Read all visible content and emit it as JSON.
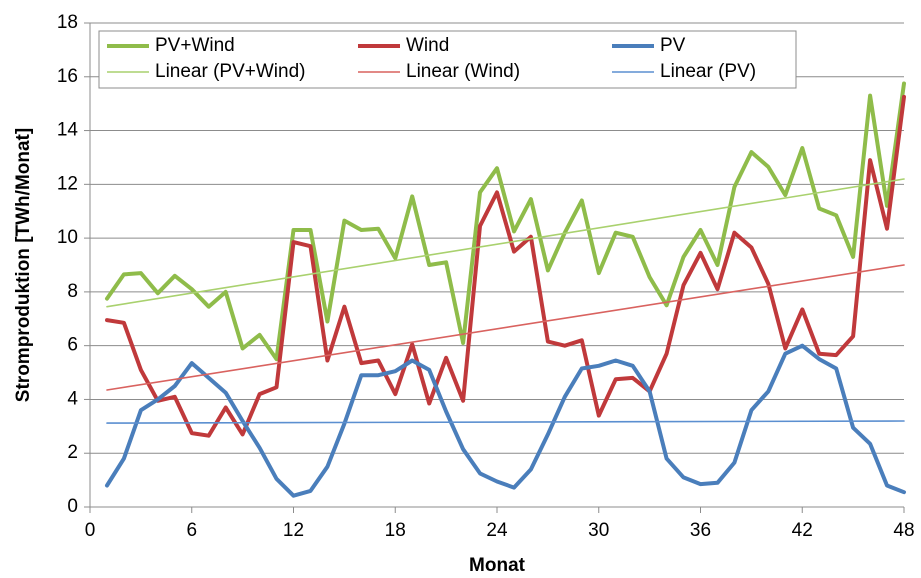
{
  "chart_data": {
    "type": "line",
    "x_label": "Monat",
    "y_label": "Stromproduktion  [TWh/Monat]",
    "x": [
      1,
      2,
      3,
      4,
      5,
      6,
      7,
      8,
      9,
      10,
      11,
      12,
      13,
      14,
      15,
      16,
      17,
      18,
      19,
      20,
      21,
      22,
      23,
      24,
      25,
      26,
      27,
      28,
      29,
      30,
      31,
      32,
      33,
      34,
      35,
      36,
      37,
      38,
      39,
      40,
      41,
      42,
      43,
      44,
      45,
      46,
      47,
      48
    ],
    "xlim": [
      0,
      48
    ],
    "xticks": [
      0,
      6,
      12,
      18,
      24,
      30,
      36,
      42,
      48
    ],
    "ylim": [
      0,
      18
    ],
    "yticks": [
      0,
      2,
      4,
      6,
      8,
      10,
      12,
      14,
      16,
      18
    ],
    "grid": true,
    "legend": "top-left",
    "series": [
      {
        "name": "PV+Wind",
        "color": "#8fbc4a",
        "values": [
          7.75,
          8.65,
          8.7,
          7.95,
          8.6,
          8.1,
          7.45,
          8.0,
          5.9,
          6.4,
          5.5,
          10.3,
          10.3,
          6.9,
          10.65,
          10.3,
          10.35,
          9.25,
          11.55,
          9.0,
          9.1,
          6.1,
          11.7,
          12.6,
          10.25,
          11.45,
          8.8,
          10.2,
          11.4,
          8.7,
          10.2,
          10.05,
          8.55,
          7.5,
          9.3,
          10.3,
          9.0,
          11.9,
          13.2,
          12.65,
          11.6,
          13.35,
          11.1,
          10.85,
          9.3,
          15.3,
          11.2,
          15.75
        ]
      },
      {
        "name": "Wind",
        "color": "#c0393b",
        "values": [
          6.95,
          6.85,
          5.1,
          3.95,
          4.1,
          2.75,
          2.65,
          3.7,
          2.7,
          4.2,
          4.45,
          9.85,
          9.7,
          5.45,
          7.45,
          5.35,
          5.45,
          4.2,
          6.05,
          3.85,
          5.55,
          3.95,
          10.45,
          11.7,
          9.5,
          10.05,
          6.15,
          6.0,
          6.2,
          3.4,
          4.75,
          4.8,
          4.3,
          5.7,
          8.25,
          9.45,
          8.1,
          10.2,
          9.65,
          8.3,
          5.9,
          7.35,
          5.7,
          5.65,
          6.35,
          12.9,
          10.35,
          15.25
        ]
      },
      {
        "name": "PV",
        "color": "#4a7ebb",
        "values": [
          0.8,
          1.8,
          3.6,
          4.0,
          4.5,
          5.35,
          4.8,
          4.25,
          3.2,
          2.2,
          1.05,
          0.42,
          0.6,
          1.5,
          3.1,
          4.9,
          4.9,
          5.05,
          5.45,
          5.1,
          3.55,
          2.15,
          1.25,
          0.95,
          0.72,
          1.4,
          2.7,
          4.1,
          5.15,
          5.25,
          5.45,
          5.25,
          4.3,
          1.8,
          1.1,
          0.85,
          0.9,
          1.65,
          3.6,
          4.3,
          5.7,
          6.0,
          5.5,
          5.15,
          2.95,
          2.35,
          0.8,
          0.55
        ]
      },
      {
        "name": "Linear (PV+Wind)",
        "color": "#a9d16e",
        "trend": true,
        "x": [
          1,
          48
        ],
        "values": [
          7.45,
          12.2
        ]
      },
      {
        "name": "Linear (Wind)",
        "color": "#d9625f",
        "trend": true,
        "x": [
          1,
          48
        ],
        "values": [
          4.35,
          9.0
        ]
      },
      {
        "name": "Linear (PV)",
        "color": "#5b8fd0",
        "trend": true,
        "x": [
          1,
          48
        ],
        "values": [
          3.12,
          3.2
        ]
      }
    ]
  }
}
